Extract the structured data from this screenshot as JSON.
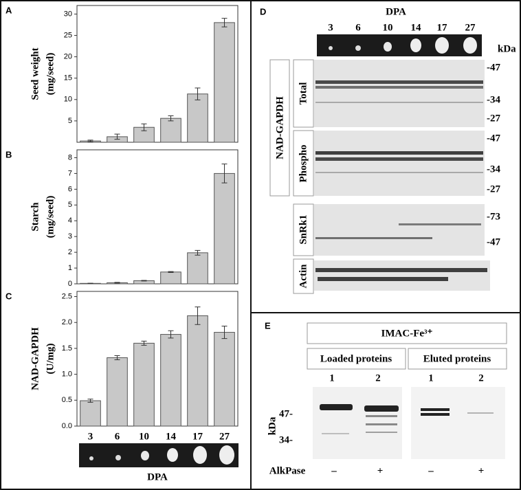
{
  "chart_data": [
    {
      "type": "bar",
      "panel_label": "A",
      "y_label": [
        "Seed weight",
        "(mg/seed)"
      ],
      "categories": [
        null,
        null,
        null,
        null,
        null,
        null
      ],
      "values": [
        0.3,
        1.3,
        3.5,
        5.6,
        11.3,
        28.0
      ],
      "errors": [
        0.2,
        0.6,
        0.8,
        0.6,
        1.4,
        1.0
      ],
      "color": "#c8c8c8",
      "ylim": [
        0,
        32
      ],
      "yticks": [
        5,
        10,
        15,
        20,
        25,
        30
      ]
    },
    {
      "type": "bar",
      "panel_label": "B",
      "y_label": [
        "Starch",
        "(mg/seed)"
      ],
      "categories": [
        null,
        null,
        null,
        null,
        null,
        null
      ],
      "values": [
        0.03,
        0.07,
        0.2,
        0.75,
        1.97,
        7.0
      ],
      "errors": [
        0.01,
        0.02,
        0.02,
        0.03,
        0.15,
        0.6
      ],
      "color": "#c8c8c8",
      "ylim": [
        0,
        8.5
      ],
      "yticks": [
        0,
        1,
        2,
        3,
        4,
        5,
        6,
        7,
        8
      ]
    },
    {
      "type": "bar",
      "panel_label": "C",
      "y_label": [
        "NAD-GAPDH",
        "(U/mg)"
      ],
      "x_label": "DPA",
      "categories": [
        "3",
        "6",
        "10",
        "14",
        "17",
        "27"
      ],
      "values": [
        0.49,
        1.32,
        1.6,
        1.77,
        2.13,
        1.81
      ],
      "errors": [
        0.03,
        0.04,
        0.04,
        0.07,
        0.17,
        0.12
      ],
      "color": "#c8c8c8",
      "ylim": [
        0,
        2.6
      ],
      "yticks": [
        {
          "value": 0,
          "label": "0.0"
        },
        {
          "value": 0.5,
          "label": "0.5"
        },
        {
          "value": 1,
          "label": "1.0"
        },
        {
          "value": 1.5,
          "label": "1.5"
        },
        {
          "value": 2,
          "label": "2.0"
        },
        2.5
      ]
    }
  ],
  "panel_d": {
    "label": "D",
    "title": "DPA",
    "lanes": [
      "3",
      "6",
      "10",
      "14",
      "17",
      "27"
    ],
    "unit": "kDa",
    "protein": "NAD-GAPDH",
    "total": "Total",
    "phospho": "Phospho",
    "snrk1": "SnRk1",
    "actin": "Actin",
    "total_markers": [
      "-47",
      "-34",
      "-27"
    ],
    "phospho_markers": [
      "-47",
      "-34",
      "-27"
    ],
    "snrk1_markers": [
      "-73",
      "-47"
    ]
  },
  "panel_e": {
    "label": "E",
    "title": "IMAC-Fe³⁺",
    "loaded": "Loaded proteins",
    "eluted": "Eluted proteins",
    "lanes": [
      "1",
      "2",
      "1",
      "2"
    ],
    "unit": "kDa",
    "markers": [
      "47-",
      "34-"
    ],
    "treatment": "AlkPase",
    "signs": [
      "–",
      "+",
      "–",
      "+"
    ]
  }
}
